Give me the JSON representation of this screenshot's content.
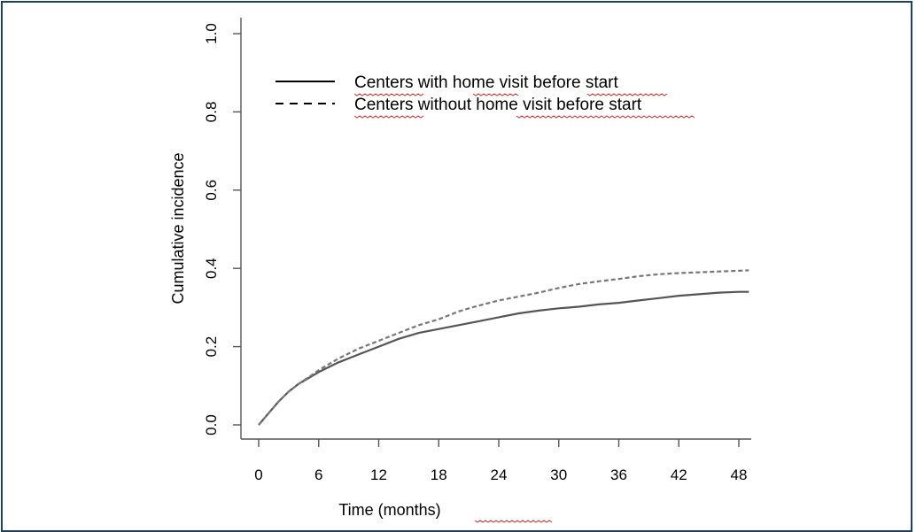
{
  "chart_data": {
    "type": "line",
    "title": "",
    "xlabel": "Time (months)",
    "ylabel": "Cumulative incidence",
    "xlim": [
      0,
      50
    ],
    "ylim": [
      0,
      1
    ],
    "x_ticks": [
      0,
      6,
      12,
      18,
      24,
      30,
      36,
      42,
      48
    ],
    "x_tick_labels": [
      "0",
      "6",
      "12",
      "18",
      "24",
      "30",
      "36",
      "42",
      "48"
    ],
    "y_ticks": [
      0,
      0.2,
      0.4,
      0.6,
      0.8,
      1.0
    ],
    "y_tick_labels": [
      "0.0",
      "0.2",
      "0.4",
      "0.6",
      "0.8",
      "1.0"
    ],
    "grid": false,
    "legend_position": "top-left",
    "series": [
      {
        "name": "Centers with home visit before start",
        "line_style": "solid",
        "color": "#555555",
        "x": [
          0,
          1,
          2,
          3,
          4,
          5,
          6,
          8,
          10,
          12,
          14,
          16,
          18,
          20,
          22,
          24,
          26,
          28,
          30,
          32,
          34,
          36,
          38,
          40,
          42,
          44,
          46,
          48,
          49
        ],
        "y": [
          0.0,
          0.03,
          0.06,
          0.085,
          0.105,
          0.12,
          0.135,
          0.16,
          0.18,
          0.2,
          0.22,
          0.235,
          0.245,
          0.255,
          0.265,
          0.275,
          0.285,
          0.292,
          0.298,
          0.302,
          0.308,
          0.312,
          0.318,
          0.324,
          0.33,
          0.334,
          0.338,
          0.34,
          0.34
        ]
      },
      {
        "name": "Centers without home visit before start",
        "line_style": "dashed",
        "color": "#777777",
        "x": [
          0,
          1,
          2,
          3,
          4,
          5,
          6,
          8,
          10,
          12,
          14,
          16,
          18,
          20,
          22,
          24,
          26,
          28,
          30,
          32,
          34,
          36,
          38,
          40,
          42,
          44,
          46,
          48,
          49
        ],
        "y": [
          0.0,
          0.03,
          0.06,
          0.085,
          0.105,
          0.122,
          0.14,
          0.17,
          0.195,
          0.215,
          0.235,
          0.255,
          0.27,
          0.29,
          0.305,
          0.318,
          0.328,
          0.338,
          0.35,
          0.36,
          0.367,
          0.373,
          0.38,
          0.385,
          0.388,
          0.39,
          0.392,
          0.394,
          0.395
        ]
      }
    ]
  }
}
